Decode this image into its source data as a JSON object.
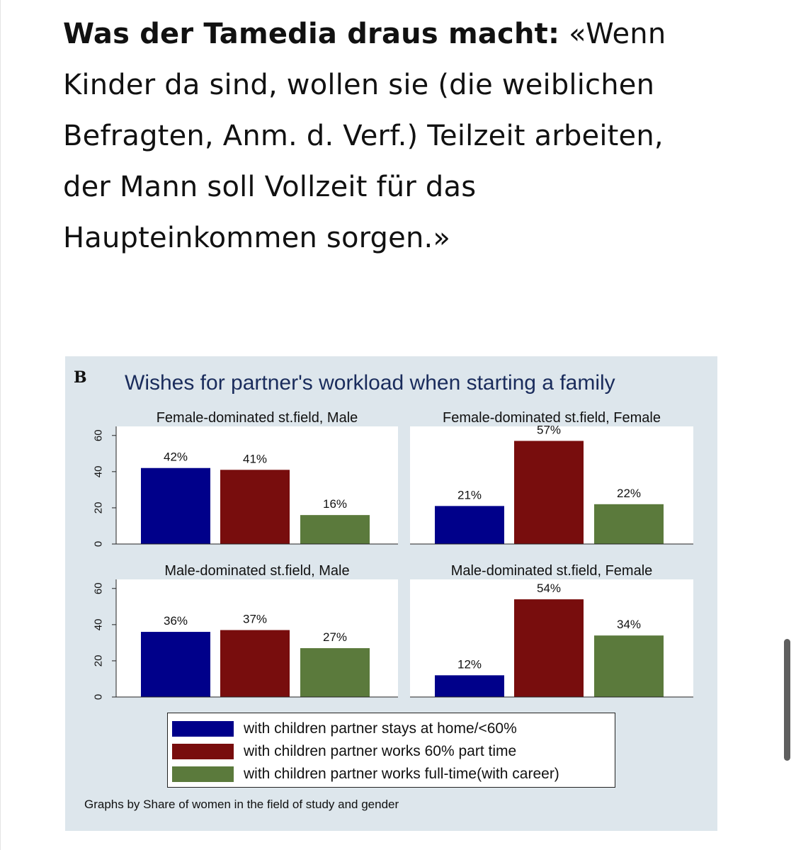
{
  "article": {
    "quote_lead": "Was der Tamedia draus macht:",
    "quote_lines": [
      "«Wenn",
      "Kinder da sind, wollen sie (die weiblichen",
      "Befragten, Anm. d. Verf.) Teilzeit arbeiten,",
      "der Mann soll Vollzeit für das",
      "Haupteinkommen sorgen.»"
    ]
  },
  "figure": {
    "letter": "B",
    "note": "Graphs by Share of women in the field of study and gender"
  },
  "chart_data": {
    "type": "bar",
    "title": "Wishes for partner's workload when starting a family",
    "categories": [
      "with children partner stays at home/<60%",
      "with children partner works 60% part time",
      "with children partner works full-time(with career)"
    ],
    "colors": [
      "#00008a",
      "#780d0d",
      "#5b7a3c"
    ],
    "ylim": [
      0,
      65
    ],
    "yticks": [
      0,
      20,
      40,
      60
    ],
    "grid": false,
    "legend_position": "bottom",
    "panels": [
      {
        "title": "Female-dominated st.field, Male",
        "values": [
          42,
          41,
          16
        ],
        "labels": [
          "42%",
          "41%",
          "16%"
        ]
      },
      {
        "title": "Female-dominated st.field, Female",
        "values": [
          21,
          57,
          22
        ],
        "labels": [
          "21%",
          "57%",
          "22%"
        ]
      },
      {
        "title": "Male-dominated st.field, Male",
        "values": [
          36,
          37,
          27
        ],
        "labels": [
          "36%",
          "37%",
          "27%"
        ]
      },
      {
        "title": "Male-dominated st.field, Female",
        "values": [
          12,
          54,
          34
        ],
        "labels": [
          "12%",
          "54%",
          "34%"
        ]
      }
    ]
  }
}
